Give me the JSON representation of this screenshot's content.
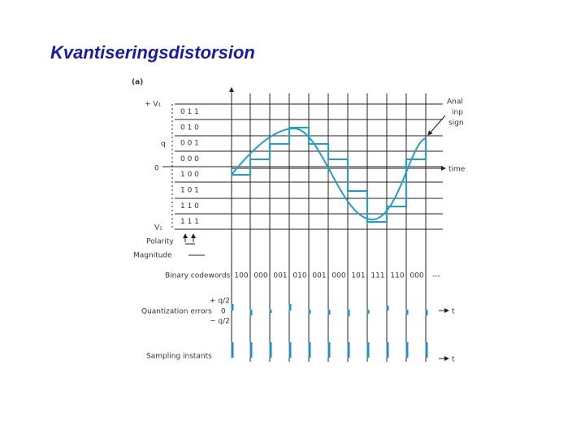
{
  "header": {
    "title": "Kvantiseringsdistorsion"
  },
  "diagram": {
    "panel_label": "(a)",
    "v_plus": "+ V₁",
    "v_minus": "V₁",
    "q_label": "q",
    "zero_label": "0",
    "level_codes": [
      "0 1 1",
      "0 1 0",
      "0 0 1",
      "0 0 0",
      "1 0 0",
      "1 0 1",
      "1 1 0",
      "1 1 1"
    ],
    "polarity": "Polarity",
    "magnitude": "Magnitude",
    "signal_label": [
      "Anal",
      "inp",
      "sign"
    ],
    "time_label": "time",
    "codewords_label": "Binary codewords",
    "codewords": [
      "100",
      "000",
      "001",
      "010",
      "001",
      "000",
      "101",
      "111",
      "110",
      "000",
      "---"
    ],
    "errors_label": "Quantization errors",
    "error_levels": [
      "+ q/2",
      "0",
      "− q/2"
    ],
    "errors_axis": "t",
    "sampling_label": "Sampling instants",
    "sampling_axis": "t"
  }
}
